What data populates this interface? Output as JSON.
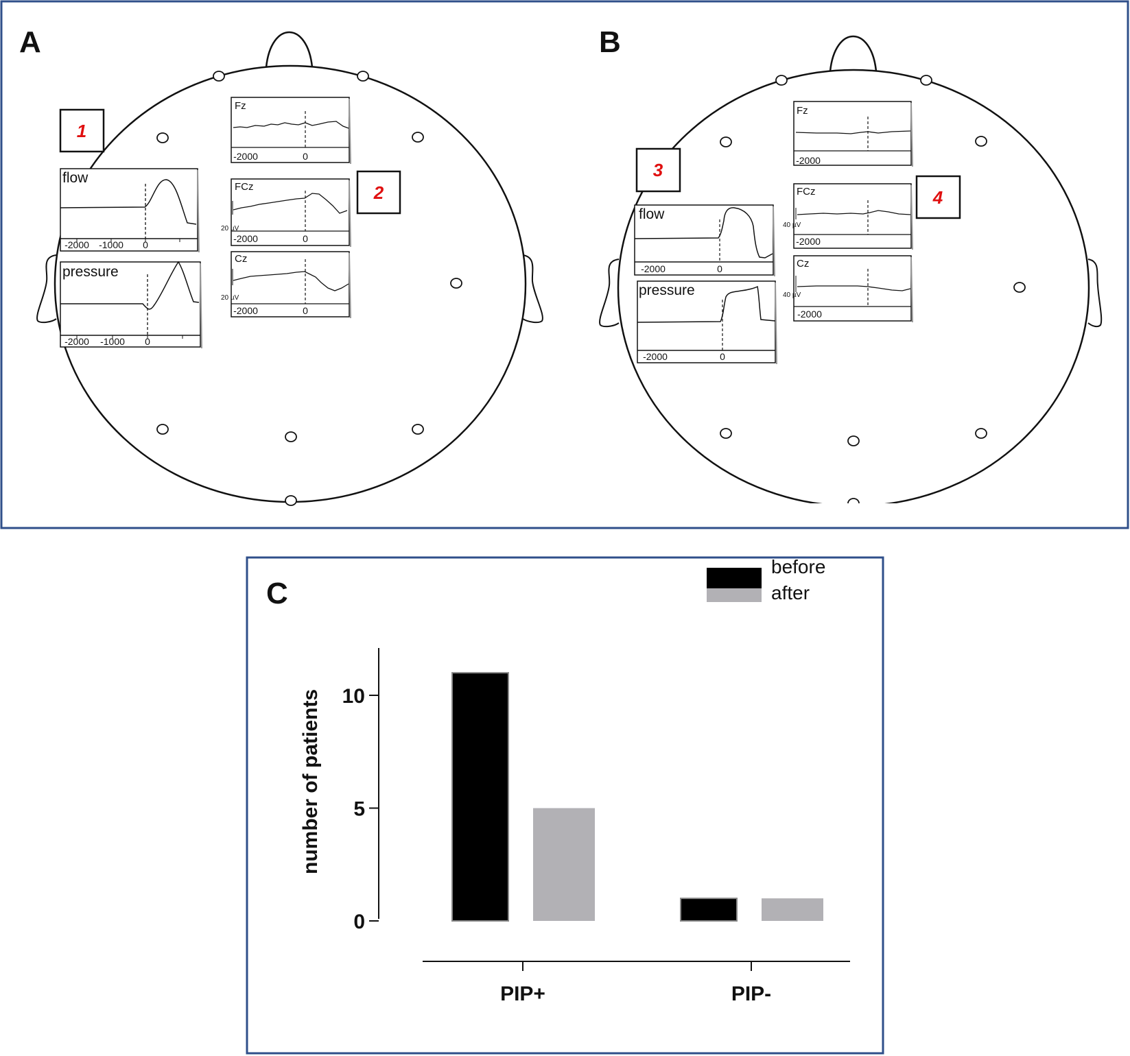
{
  "panels": {
    "A": {
      "letter": "A",
      "boxes": [
        "1",
        "2"
      ],
      "flow": {
        "label": "flow",
        "ticks": [
          "-2000",
          "-1000",
          "0"
        ]
      },
      "pressure": {
        "label": "pressure",
        "ticks": [
          "-2000",
          "-1000",
          "0"
        ]
      },
      "fz": {
        "label": "Fz",
        "ticks": [
          "-2000",
          "0"
        ]
      },
      "fcz": {
        "label": "FCz",
        "scale": "20 µV",
        "ticks": [
          "-2000",
          "0"
        ]
      },
      "cz": {
        "label": "Cz",
        "scale": "20 µV",
        "ticks": [
          "-2000",
          "0"
        ]
      }
    },
    "B": {
      "letter": "B",
      "boxes": [
        "3",
        "4"
      ],
      "flow": {
        "label": "flow",
        "ticks": [
          "-2000",
          "0"
        ]
      },
      "pressure": {
        "label": "pressure",
        "ticks": [
          "-2000",
          "0"
        ]
      },
      "fz": {
        "label": "Fz",
        "ticks": [
          "-2000"
        ]
      },
      "fcz": {
        "label": "FCz",
        "scale": "40 µV",
        "ticks": [
          "-2000"
        ]
      },
      "cz": {
        "label": "Cz",
        "scale": "40 µV",
        "ticks": [
          "-2000"
        ]
      }
    },
    "C": {
      "letter": "C"
    }
  },
  "chart_data": {
    "type": "bar",
    "categories": [
      "PIP+",
      "PIP-"
    ],
    "series": [
      {
        "name": "before",
        "values": [
          11,
          1
        ],
        "color": "#000000"
      },
      {
        "name": "after",
        "values": [
          5,
          1
        ],
        "color": "#b2b1b5"
      }
    ],
    "ylabel": "number of patients",
    "yticks": [
      "0",
      "5",
      "10"
    ],
    "ylim": [
      0,
      12
    ],
    "legend": "top-right"
  },
  "colors": {
    "frame": "#2f4f8a",
    "box_number": "#e01010",
    "before": "#000000",
    "after": "#b2b1b5"
  }
}
